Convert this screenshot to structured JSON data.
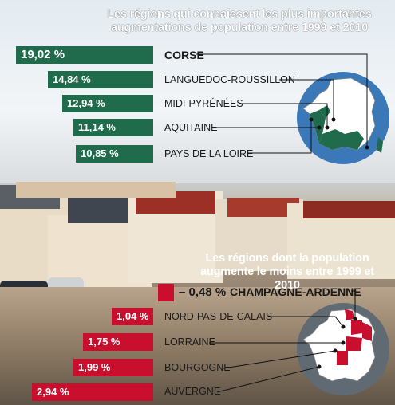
{
  "chart_data": [
    {
      "type": "bar",
      "title": "Les régions qui connaissent les plus importantes augmentations de population entre 1999 et 2010",
      "categories": [
        "CORSE",
        "LANGUEDOC-ROUSSILLON",
        "MIDI-PYRÉNÉES",
        "AQUITAINE",
        "PAYS DE LA LOIRE"
      ],
      "values": [
        19.02,
        14.84,
        12.94,
        11.14,
        10.85
      ],
      "value_labels": [
        "19,02 %",
        "14,84 %",
        "12,94 %",
        "11,14 %",
        "10,85 %"
      ],
      "color": "#1f6b4c"
    },
    {
      "type": "bar",
      "title": "Les régions dont la population augmente le moins entre 1999 et 2010",
      "categories": [
        "CHAMPAGNE-ARDENNE",
        "NORD-PAS-DE-CALAIS",
        "LORRAINE",
        "BOURGOGNE",
        "AUVERGNE"
      ],
      "values": [
        -0.48,
        1.04,
        1.75,
        1.99,
        2.94
      ],
      "value_labels": [
        "– 0,48 %",
        "1,04 %",
        "1,75 %",
        "1,99 %",
        "2,94 %"
      ],
      "color": "#c8102e"
    }
  ],
  "colors": {
    "increase": "#1f6b4c",
    "decrease": "#c8102e",
    "map_land": "#ffffff",
    "map_circle": "#3b78b8"
  }
}
